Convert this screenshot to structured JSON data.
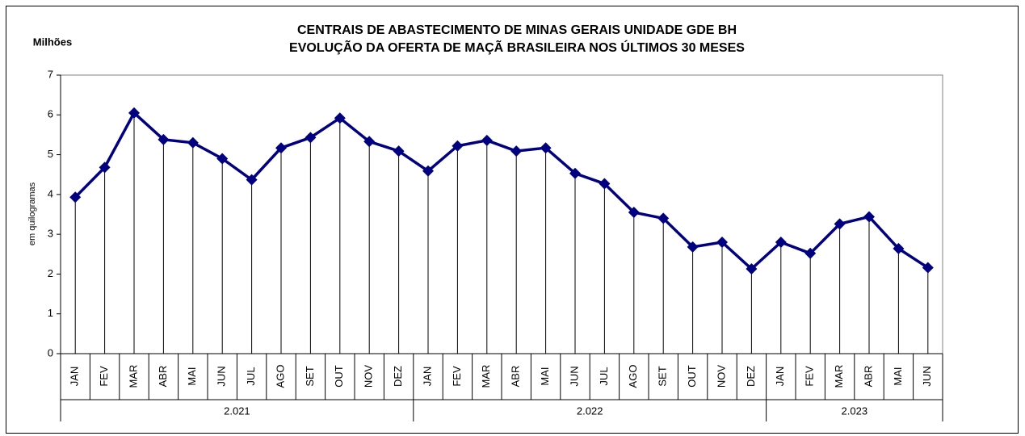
{
  "chart_data": {
    "type": "line",
    "title": "CENTRAIS DE ABASTECIMENTO DE MINAS GERAIS UNIDADE GDE BH",
    "subtitle": "EVOLUÇÃO DA OFERTA DE MAÇÃ BRASILEIRA NOS ÚLTIMOS 30 MESES",
    "unit_label": "Milhões",
    "y_label": "em quilogramas",
    "color": "#000080",
    "drop_lines": true,
    "ylim": [
      0,
      7
    ],
    "yticks": [
      0,
      1,
      2,
      3,
      4,
      5,
      6,
      7
    ],
    "groups": [
      {
        "label": "2.021",
        "categories": [
          "JAN",
          "FEV",
          "MAR",
          "ABR",
          "MAI",
          "JUN",
          "JUL",
          "AGO",
          "SET",
          "OUT",
          "NOV",
          "DEZ"
        ],
        "values": [
          3.93,
          4.68,
          6.05,
          5.38,
          5.3,
          4.9,
          4.37,
          5.17,
          5.43,
          5.92,
          5.33,
          5.09
        ]
      },
      {
        "label": "2.022",
        "categories": [
          "JAN",
          "FEV",
          "MAR",
          "ABR",
          "MAI",
          "JUN",
          "JUL",
          "AGO",
          "SET",
          "OUT",
          "NOV",
          "DEZ"
        ],
        "values": [
          4.59,
          5.22,
          5.36,
          5.09,
          5.17,
          4.53,
          4.27,
          3.55,
          3.4,
          2.68,
          2.8,
          2.13
        ]
      },
      {
        "label": "2.023",
        "categories": [
          "JAN",
          "FEV",
          "MAR",
          "ABR",
          "MAI",
          "JUN"
        ],
        "values": [
          2.8,
          2.52,
          3.26,
          3.44,
          2.64,
          2.16
        ]
      }
    ]
  }
}
